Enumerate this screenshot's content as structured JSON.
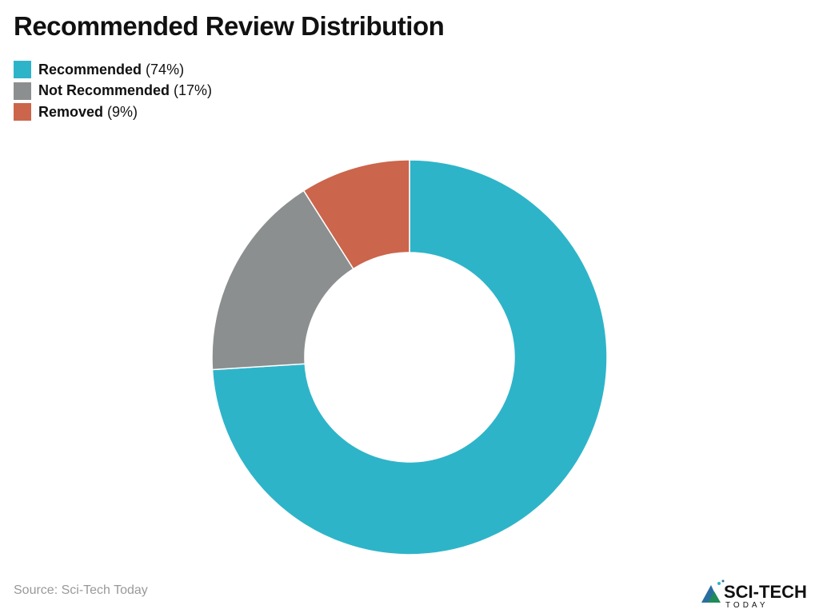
{
  "chart_data": {
    "type": "pie",
    "title": "Recommended Review Distribution",
    "donut": true,
    "legend_position": "top-left",
    "slices": [
      {
        "label": "Recommended",
        "value": 74,
        "display": "(74%)",
        "color": "#2eb4c9"
      },
      {
        "label": "Not Recommended",
        "value": 17,
        "display": "(17%)",
        "color": "#8c8f8f"
      },
      {
        "label": "Removed",
        "value": 9,
        "display": "(9%)",
        "color": "#cb654b"
      }
    ]
  },
  "footer": {
    "source": "Source: Sci-Tech Today",
    "logo_text": "SCI-TECH",
    "logo_subtext": "TODAY"
  }
}
